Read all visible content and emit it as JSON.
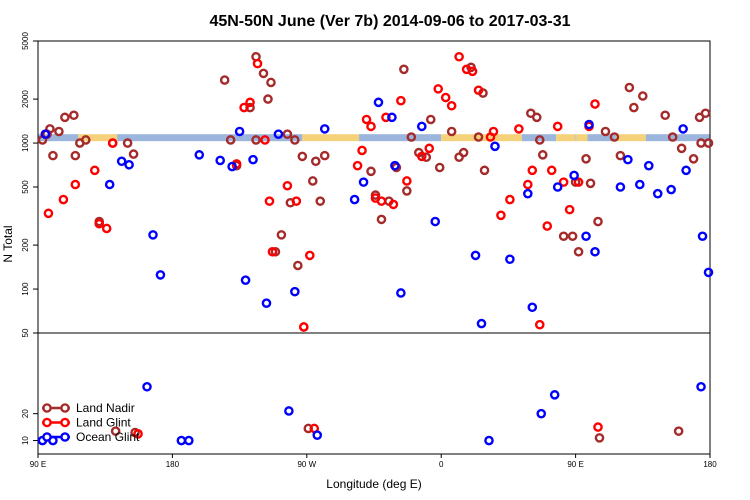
{
  "chart_data": {
    "type": "scatter",
    "title": "45N-50N June (Ver 7b)   2014-09-06 to 2017-03-31",
    "xlabel": "Longitude (deg E)",
    "ylabel": "N Total",
    "x_ticks": [
      {
        "value": 90,
        "label": "90 E"
      },
      {
        "value": 180,
        "label": "180"
      },
      {
        "value": 270,
        "label": "90 W"
      },
      {
        "value": 360,
        "label": "0"
      },
      {
        "value": 450,
        "label": "90 E"
      },
      {
        "value": 540,
        "label": "180"
      }
    ],
    "xlim": [
      90,
      540
    ],
    "upper_panel": {
      "scale": "log",
      "ylim": [
        50,
        5000
      ],
      "y_ticks": [
        {
          "value": 100,
          "label": "100"
        },
        {
          "value": 200,
          "label": "200"
        },
        {
          "value": 500,
          "label": "500"
        },
        {
          "value": 1000,
          "label": "1000"
        },
        {
          "value": 2000,
          "label": "2000"
        },
        {
          "value": 5000,
          "label": "5000"
        }
      ]
    },
    "lower_panel": {
      "scale": "linear",
      "ylim": [
        5,
        50
      ],
      "y_ticks": [
        {
          "value": 10,
          "label": "10"
        },
        {
          "value": 20,
          "label": "20"
        },
        {
          "value": 50,
          "label": "50"
        }
      ]
    },
    "land_mask": [
      {
        "type": "ocean",
        "from": 90,
        "to": 117
      },
      {
        "type": "land",
        "from": 117,
        "to": 143
      },
      {
        "type": "ocean",
        "from": 143,
        "to": 267
      },
      {
        "type": "land",
        "from": 267,
        "to": 305
      },
      {
        "type": "ocean",
        "from": 305,
        "to": 360
      },
      {
        "type": "land",
        "from": 360,
        "to": 414
      },
      {
        "type": "ocean",
        "from": 414,
        "to": 437
      },
      {
        "type": "land",
        "from": 437,
        "to": 450
      },
      {
        "type": "ocean",
        "from": 450,
        "to": 450.5
      },
      {
        "type": "land",
        "from": 450.5,
        "to": 458
      },
      {
        "type": "ocean",
        "from": 458,
        "to": 477
      },
      {
        "type": "land",
        "from": 477,
        "to": 497
      },
      {
        "type": "ocean",
        "from": 497,
        "to": 540
      }
    ],
    "band_colors": {
      "land": "#f5d27a",
      "ocean": "#9bb5dc"
    },
    "legend_position": "bottom-left",
    "series": [
      {
        "name": "Land Nadir",
        "color": "#a52a2a",
        "points": [
          [
            93,
            1050
          ],
          [
            98,
            1250
          ],
          [
            104,
            1200
          ],
          [
            114,
            1550
          ],
          [
            118,
            1000
          ],
          [
            122,
            1050
          ],
          [
            131,
            290
          ],
          [
            142,
            13.5
          ],
          [
            155,
            13
          ],
          [
            236,
            3900
          ],
          [
            241,
            3000
          ],
          [
            236,
            1050
          ],
          [
            244,
            2000
          ],
          [
            249,
            180
          ],
          [
            253,
            235
          ],
          [
            259,
            390
          ],
          [
            264,
            145
          ],
          [
            267,
            810
          ],
          [
            268,
            55
          ],
          [
            271,
            14.5
          ],
          [
            274,
            550
          ],
          [
            325,
            400
          ],
          [
            330,
            680
          ],
          [
            335,
            3200
          ],
          [
            337,
            470
          ],
          [
            350,
            800
          ],
          [
            375,
            860
          ],
          [
            380,
            3300
          ],
          [
            385,
            1100
          ],
          [
            388,
            2200
          ],
          [
            389,
            650
          ],
          [
            420,
            1600
          ],
          [
            424,
            1500
          ],
          [
            426,
            1050
          ],
          [
            428,
            830
          ],
          [
            450,
            540
          ],
          [
            442,
            230
          ],
          [
            448,
            230
          ],
          [
            452,
            180
          ],
          [
            457,
            780
          ],
          [
            460,
            530
          ],
          [
            465,
            290
          ],
          [
            466,
            11
          ],
          [
            470,
            1200
          ],
          [
            476,
            1100
          ],
          [
            480,
            820
          ],
          [
            486,
            2400
          ],
          [
            489,
            1750
          ],
          [
            495,
            2100
          ],
          [
            510,
            1550
          ],
          [
            515,
            1100
          ],
          [
            521,
            920
          ],
          [
            529,
            780
          ],
          [
            533,
            1500
          ],
          [
            519,
            13.5
          ],
          [
            534,
            1000
          ],
          [
            537,
            1600
          ],
          [
            539,
            1000
          ],
          [
            96,
            1150
          ],
          [
            100,
            820
          ],
          [
            108,
            1500
          ],
          [
            115,
            820
          ],
          [
            140,
            1000
          ],
          [
            150,
            1000
          ],
          [
            154,
            840
          ],
          [
            215,
            2700
          ],
          [
            219,
            1050
          ],
          [
            223,
            700
          ],
          [
            232,
            1750
          ],
          [
            246,
            2600
          ],
          [
            257,
            1150
          ],
          [
            262,
            1050
          ],
          [
            276,
            750
          ],
          [
            279,
            400
          ],
          [
            282,
            820
          ],
          [
            313,
            640
          ],
          [
            316,
            440
          ],
          [
            320,
            300
          ],
          [
            340,
            1100
          ],
          [
            345,
            860
          ],
          [
            353,
            1450
          ],
          [
            359,
            680
          ],
          [
            367,
            1200
          ],
          [
            372,
            800
          ]
        ]
      },
      {
        "name": "Land Glint",
        "color": "#ff0000",
        "points": [
          [
            95,
            1150
          ],
          [
            97,
            330
          ],
          [
            107,
            410
          ],
          [
            115,
            520
          ],
          [
            128,
            650
          ],
          [
            131,
            280
          ],
          [
            136,
            260
          ],
          [
            140,
            1000
          ],
          [
            157,
            12.5
          ],
          [
            223,
            720
          ],
          [
            228,
            1750
          ],
          [
            232,
            1900
          ],
          [
            237,
            3500
          ],
          [
            242,
            1050
          ],
          [
            245,
            400
          ],
          [
            247,
            180
          ],
          [
            257,
            510
          ],
          [
            263,
            400
          ],
          [
            268,
            55
          ],
          [
            272,
            170
          ],
          [
            275,
            14.5
          ],
          [
            304,
            700
          ],
          [
            307,
            890
          ],
          [
            310,
            1450
          ],
          [
            313,
            1300
          ],
          [
            316,
            420
          ],
          [
            320,
            400
          ],
          [
            323,
            1500
          ],
          [
            328,
            380
          ],
          [
            333,
            1950
          ],
          [
            337,
            550
          ],
          [
            347,
            810
          ],
          [
            352,
            920
          ],
          [
            358,
            2350
          ],
          [
            363,
            2050
          ],
          [
            367,
            1800
          ],
          [
            372,
            3900
          ],
          [
            377,
            3200
          ],
          [
            381,
            3100
          ],
          [
            385,
            2300
          ],
          [
            393,
            1100
          ],
          [
            395,
            1200
          ],
          [
            400,
            320
          ],
          [
            406,
            410
          ],
          [
            412,
            1250
          ],
          [
            418,
            520
          ],
          [
            421,
            650
          ],
          [
            426,
            57
          ],
          [
            431,
            270
          ],
          [
            434,
            650
          ],
          [
            438,
            1300
          ],
          [
            442,
            540
          ],
          [
            446,
            350
          ],
          [
            452,
            540
          ],
          [
            459,
            1300
          ],
          [
            463,
            1850
          ],
          [
            465,
            15
          ]
        ]
      },
      {
        "name": "Ocean Glint",
        "color": "#0000ff",
        "points": [
          [
            93,
            10
          ],
          [
            95,
            1150
          ],
          [
            100,
            10
          ],
          [
            138,
            520
          ],
          [
            146,
            750
          ],
          [
            151,
            710
          ],
          [
            163,
            30
          ],
          [
            167,
            235
          ],
          [
            172,
            125
          ],
          [
            186,
            10
          ],
          [
            191,
            10
          ],
          [
            198,
            830
          ],
          [
            212,
            760
          ],
          [
            220,
            690
          ],
          [
            225,
            1200
          ],
          [
            229,
            115
          ],
          [
            234,
            770
          ],
          [
            243,
            80
          ],
          [
            251,
            1150
          ],
          [
            258,
            21
          ],
          [
            262,
            96
          ],
          [
            277,
            12
          ],
          [
            282,
            1250
          ],
          [
            302,
            410
          ],
          [
            308,
            540
          ],
          [
            318,
            1900
          ],
          [
            327,
            1500
          ],
          [
            329,
            700
          ],
          [
            333,
            94
          ],
          [
            347,
            1300
          ],
          [
            356,
            290
          ],
          [
            383,
            170
          ],
          [
            387,
            58
          ],
          [
            392,
            10
          ],
          [
            396,
            950
          ],
          [
            406,
            160
          ],
          [
            418,
            450
          ],
          [
            421,
            75
          ],
          [
            427,
            20
          ],
          [
            436,
            27
          ],
          [
            438,
            500
          ],
          [
            449,
            600
          ],
          [
            457,
            230
          ],
          [
            459,
            1340
          ],
          [
            463,
            180
          ],
          [
            480,
            500
          ],
          [
            485,
            770
          ],
          [
            493,
            520
          ],
          [
            499,
            700
          ],
          [
            505,
            450
          ],
          [
            514,
            480
          ],
          [
            522,
            1250
          ],
          [
            524,
            650
          ],
          [
            534,
            30
          ],
          [
            535,
            230
          ],
          [
            539,
            130
          ]
        ]
      }
    ]
  }
}
